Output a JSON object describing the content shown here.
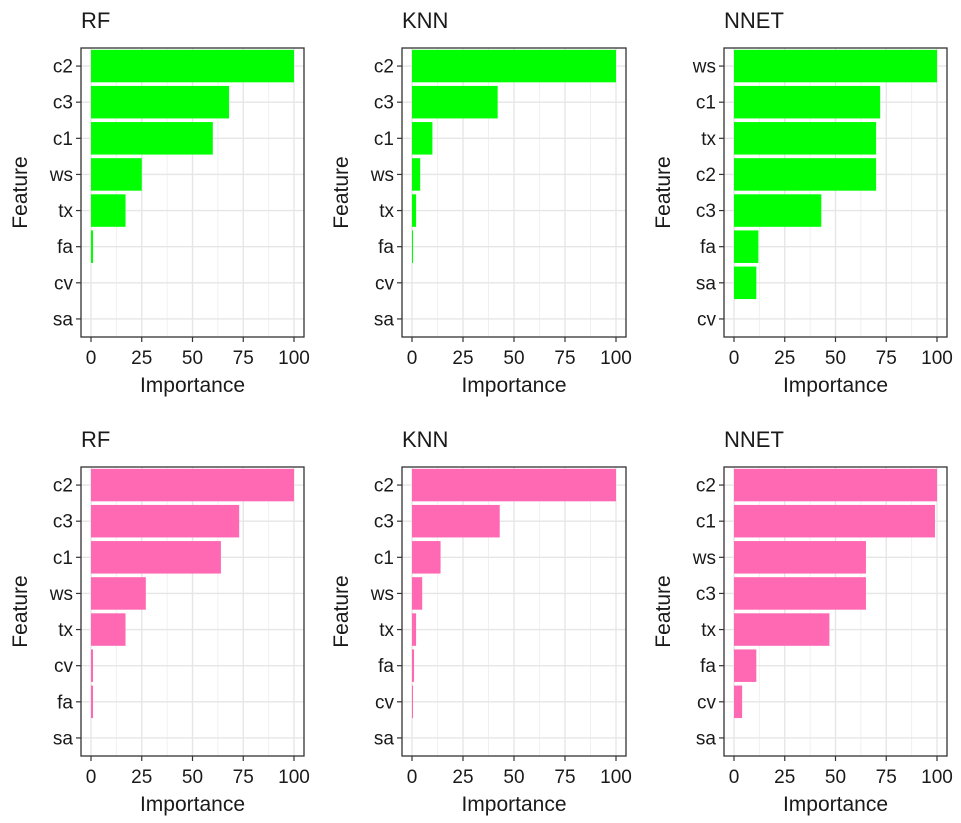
{
  "chart_data": [
    {
      "type": "bar",
      "orientation": "horizontal",
      "title": "RF",
      "xlabel": "Importance",
      "ylabel": "Feature",
      "xlim": [
        0,
        100
      ],
      "xticks": [
        "0",
        "25",
        "50",
        "75",
        "100"
      ],
      "color": "#00ff00",
      "categories": [
        "c2",
        "c3",
        "c1",
        "ws",
        "tx",
        "fa",
        "cv",
        "sa"
      ],
      "values": [
        100,
        68,
        60,
        25,
        17,
        1,
        0,
        0
      ],
      "grid": true
    },
    {
      "type": "bar",
      "orientation": "horizontal",
      "title": "KNN",
      "xlabel": "Importance",
      "ylabel": "Feature",
      "xlim": [
        0,
        100
      ],
      "xticks": [
        "0",
        "25",
        "50",
        "75",
        "100"
      ],
      "color": "#00ff00",
      "categories": [
        "c2",
        "c3",
        "c1",
        "ws",
        "tx",
        "fa",
        "cv",
        "sa"
      ],
      "values": [
        100,
        42,
        10,
        4,
        2,
        0.5,
        0,
        0
      ],
      "grid": true
    },
    {
      "type": "bar",
      "orientation": "horizontal",
      "title": "NNET",
      "xlabel": "Importance",
      "ylabel": "Feature",
      "xlim": [
        0,
        100
      ],
      "xticks": [
        "0",
        "25",
        "50",
        "75",
        "100"
      ],
      "color": "#00ff00",
      "categories": [
        "ws",
        "c1",
        "tx",
        "c2",
        "c3",
        "fa",
        "sa",
        "cv"
      ],
      "values": [
        100,
        72,
        70,
        70,
        43,
        12,
        11,
        0
      ],
      "grid": true
    },
    {
      "type": "bar",
      "orientation": "horizontal",
      "title": "RF",
      "xlabel": "Importance",
      "ylabel": "Feature",
      "xlim": [
        0,
        100
      ],
      "xticks": [
        "0",
        "25",
        "50",
        "75",
        "100"
      ],
      "color": "#ff69b4",
      "categories": [
        "c2",
        "c3",
        "c1",
        "ws",
        "tx",
        "cv",
        "fa",
        "sa"
      ],
      "values": [
        100,
        73,
        64,
        27,
        17,
        1,
        1,
        0
      ],
      "grid": true
    },
    {
      "type": "bar",
      "orientation": "horizontal",
      "title": "KNN",
      "xlabel": "Importance",
      "ylabel": "Feature",
      "xlim": [
        0,
        100
      ],
      "xticks": [
        "0",
        "25",
        "50",
        "75",
        "100"
      ],
      "color": "#ff69b4",
      "categories": [
        "c2",
        "c3",
        "c1",
        "ws",
        "tx",
        "fa",
        "cv",
        "sa"
      ],
      "values": [
        100,
        43,
        14,
        5,
        2,
        1,
        0.5,
        0
      ],
      "grid": true
    },
    {
      "type": "bar",
      "orientation": "horizontal",
      "title": "NNET",
      "xlabel": "Importance",
      "ylabel": "Feature",
      "xlim": [
        0,
        100
      ],
      "xticks": [
        "0",
        "25",
        "50",
        "75",
        "100"
      ],
      "color": "#ff69b4",
      "categories": [
        "c2",
        "c1",
        "ws",
        "c3",
        "tx",
        "fa",
        "cv",
        "sa"
      ],
      "values": [
        100,
        99,
        65,
        65,
        47,
        11,
        4,
        0
      ],
      "grid": true
    }
  ]
}
